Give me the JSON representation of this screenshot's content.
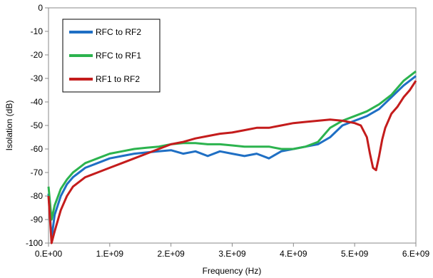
{
  "chart_data": {
    "type": "line",
    "xlabel": "Frequency (Hz)",
    "ylabel": "Isolation (dB)",
    "xlim": [
      0,
      6000000000
    ],
    "ylim": [
      -100,
      0
    ],
    "grid": false,
    "legend_position": "top-left",
    "x_ticks": [
      {
        "value": 0,
        "label": "0.E+00"
      },
      {
        "value": 1000000000,
        "label": "1.E+09"
      },
      {
        "value": 2000000000,
        "label": "2.E+09"
      },
      {
        "value": 3000000000,
        "label": "3.E+09"
      },
      {
        "value": 4000000000,
        "label": "4.E+09"
      },
      {
        "value": 5000000000,
        "label": "5.E+09"
      },
      {
        "value": 6000000000,
        "label": "6.E+09"
      }
    ],
    "y_ticks": [
      {
        "value": 0,
        "label": "0"
      },
      {
        "value": -10,
        "label": "-10"
      },
      {
        "value": -20,
        "label": "-20"
      },
      {
        "value": -30,
        "label": "-30"
      },
      {
        "value": -40,
        "label": "-40"
      },
      {
        "value": -50,
        "label": "-50"
      },
      {
        "value": -60,
        "label": "-60"
      },
      {
        "value": -70,
        "label": "-70"
      },
      {
        "value": -80,
        "label": "-80"
      },
      {
        "value": -90,
        "label": "-90"
      },
      {
        "value": -100,
        "label": "-100"
      }
    ],
    "series": [
      {
        "name": "RFC to RF2",
        "color": "#1f6fc4",
        "x": [
          0,
          50000000,
          100000000,
          200000000,
          300000000,
          400000000,
          500000000,
          600000000,
          700000000,
          800000000,
          1000000000,
          1200000000,
          1400000000,
          1600000000,
          1800000000,
          2000000000,
          2200000000,
          2400000000,
          2600000000,
          2800000000,
          3000000000,
          3200000000,
          3400000000,
          3500000000,
          3600000000,
          3800000000,
          4000000000,
          4200000000,
          4400000000,
          4600000000,
          4800000000,
          5000000000,
          5200000000,
          5400000000,
          5600000000,
          5800000000,
          6000000000
        ],
        "y": [
          -79,
          -98,
          -88,
          -80,
          -75,
          -72,
          -70,
          -68,
          -67,
          -66,
          -64,
          -63,
          -62,
          -61.5,
          -61,
          -60.5,
          -62,
          -61,
          -63,
          -61,
          -62,
          -63,
          -62,
          -63,
          -64,
          -61,
          -60,
          -59,
          -58,
          -55,
          -50,
          -48,
          -46,
          -43,
          -38,
          -33,
          -29
        ]
      },
      {
        "name": "RFC to RF1",
        "color": "#2cb34e",
        "x": [
          0,
          50000000,
          100000000,
          200000000,
          300000000,
          400000000,
          500000000,
          600000000,
          700000000,
          800000000,
          1000000000,
          1200000000,
          1400000000,
          1600000000,
          1800000000,
          2000000000,
          2200000000,
          2400000000,
          2600000000,
          2800000000,
          3000000000,
          3200000000,
          3400000000,
          3600000000,
          3800000000,
          4000000000,
          4200000000,
          4400000000,
          4600000000,
          4800000000,
          5000000000,
          5200000000,
          5400000000,
          5600000000,
          5800000000,
          6000000000
        ],
        "y": [
          -76,
          -90,
          -84,
          -77,
          -73,
          -70,
          -68,
          -66,
          -65,
          -64,
          -62,
          -61,
          -60,
          -59.5,
          -59,
          -58,
          -57.5,
          -57.5,
          -58,
          -58,
          -58.5,
          -59,
          -59,
          -59,
          -60,
          -60,
          -59,
          -57,
          -51,
          -48,
          -46,
          -44,
          -41,
          -37,
          -31,
          -27
        ]
      },
      {
        "name": "RF1 to RF2",
        "color": "#c41c1c",
        "x": [
          0,
          50000000,
          100000000,
          200000000,
          300000000,
          400000000,
          500000000,
          600000000,
          700000000,
          800000000,
          1000000000,
          1200000000,
          1400000000,
          1600000000,
          1800000000,
          2000000000,
          2200000000,
          2400000000,
          2600000000,
          2800000000,
          3000000000,
          3200000000,
          3400000000,
          3600000000,
          3800000000,
          4000000000,
          4200000000,
          4400000000,
          4600000000,
          4800000000,
          5000000000,
          5100000000,
          5200000000,
          5250000000,
          5300000000,
          5350000000,
          5400000000,
          5450000000,
          5500000000,
          5600000000,
          5700000000,
          5800000000,
          5900000000,
          6000000000
        ],
        "y": [
          -80,
          -100,
          -95,
          -86,
          -80,
          -76,
          -74,
          -72,
          -71,
          -70,
          -68,
          -66,
          -64,
          -62,
          -60,
          -58,
          -57,
          -55.5,
          -54.5,
          -53.5,
          -53,
          -52,
          -51,
          -51,
          -50,
          -49,
          -48.5,
          -48,
          -47.5,
          -48,
          -49,
          -50,
          -55,
          -62,
          -68,
          -69,
          -63,
          -56,
          -51,
          -45,
          -42,
          -38,
          -35,
          -31
        ]
      }
    ]
  }
}
